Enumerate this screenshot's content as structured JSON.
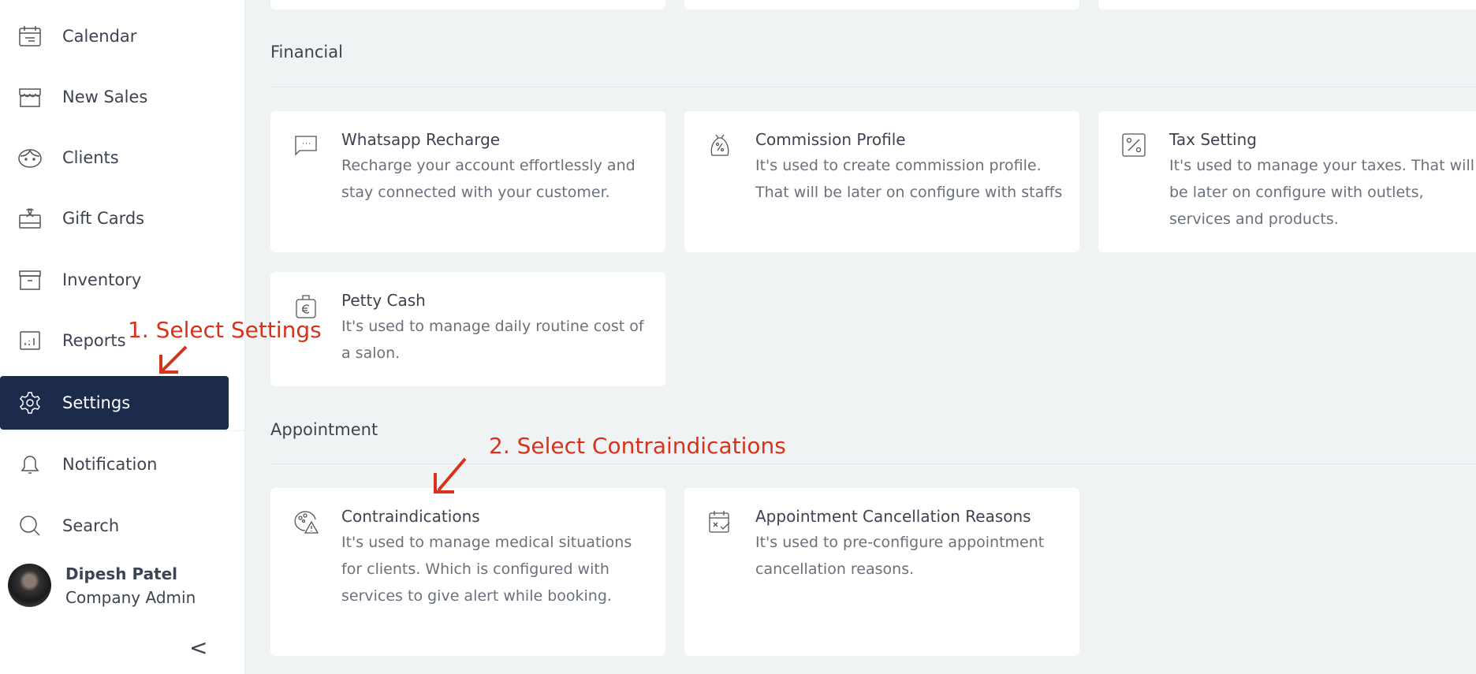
{
  "sidebar": {
    "items": [
      {
        "label": "Calendar",
        "icon": "calendar-icon"
      },
      {
        "label": "New Sales",
        "icon": "store-icon"
      },
      {
        "label": "Clients",
        "icon": "face-icon"
      },
      {
        "label": "Gift Cards",
        "icon": "gift-icon"
      },
      {
        "label": "Inventory",
        "icon": "archive-icon"
      },
      {
        "label": "Reports",
        "icon": "report-icon"
      },
      {
        "label": "Settings",
        "icon": "gear-icon",
        "active": true
      },
      {
        "label": "Notification",
        "icon": "bell-icon"
      },
      {
        "label": "Search",
        "icon": "search-icon"
      }
    ],
    "user": {
      "name": "Dipesh Patel",
      "role": "Company Admin"
    },
    "collapse": "<"
  },
  "sections": [
    {
      "title": "Financial",
      "cards": [
        {
          "title": "Whatsapp Recharge",
          "desc": "Recharge your account effortlessly and stay connected with your customer."
        },
        {
          "title": "Commission Profile",
          "desc": "It's used to create commission profile. That will be later on configure with staffs"
        },
        {
          "title": "Tax Setting",
          "desc": "It's used to manage your taxes. That will be later on configure with outlets, services and products."
        },
        {
          "title": "Petty Cash",
          "desc": "It's used to manage daily routine cost of a salon."
        }
      ]
    },
    {
      "title": "Appointment",
      "cards": [
        {
          "title": "Contraindications",
          "desc": "It's used to manage medical situations for clients. Which is configured with services to give alert while booking."
        },
        {
          "title": "Appointment Cancellation Reasons",
          "desc": "It's used to pre-configure appointment cancellation reasons."
        }
      ]
    }
  ],
  "annotations": [
    "1. Select Settings",
    "2. Select Contraindications"
  ],
  "colors": {
    "active": "#1c2a4b",
    "annotation": "#d9321c",
    "background": "#f0f3f4"
  }
}
